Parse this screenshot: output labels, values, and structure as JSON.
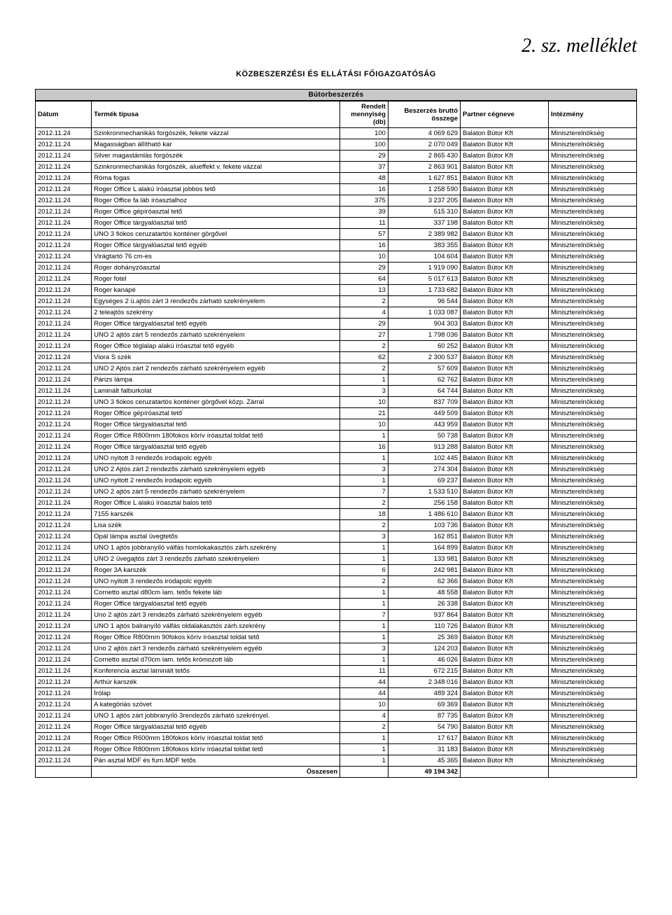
{
  "handwritten_note": "2. sz. melléklet",
  "org_title": "KÖZBESZERZÉSI ÉS ELLÁTÁSI FŐIGAZGATÓSÁG",
  "section_header": "Bútorbeszerzés",
  "columns": {
    "date": "Dátum",
    "product": "Termék típusa",
    "qty": "Rendelt mennyiség (db)",
    "amount": "Beszerzés bruttó összege",
    "partner": "Partner cégneve",
    "institution": "Intézmény"
  },
  "partner_default": "Balaton Bútor Kft",
  "institution_default": "Miniszterelnökség",
  "rows": [
    {
      "d": "2012.11.24",
      "p": "Szinkronmechanikás forgószék, fekete vázzal",
      "q": "100",
      "a": "4 069 629"
    },
    {
      "d": "2012.11.24",
      "p": "Magasságban állítható kar",
      "q": "100",
      "a": "2 070 049"
    },
    {
      "d": "2012.11.24",
      "p": "Silver magastámlás forgószék",
      "q": "29",
      "a": "2 865 430"
    },
    {
      "d": "2012.11.24",
      "p": "Szinkronmechanikás forgószék, alueffekt v. fekete vázzal",
      "q": "37",
      "a": "2 863 901"
    },
    {
      "d": "2012.11.24",
      "p": "Róma fogas",
      "q": "48",
      "a": "1 627 851"
    },
    {
      "d": "2012.11.24",
      "p": "Roger Office L alakú íróasztal jobbos tető",
      "q": "16",
      "a": "1 258 590"
    },
    {
      "d": "2012.11.24",
      "p": "Roger Office fa láb íróasztalhoz",
      "q": "375",
      "a": "3 237 205"
    },
    {
      "d": "2012.11.24",
      "p": "Roger Office gépíróasztal tető",
      "q": "39",
      "a": "515 310"
    },
    {
      "d": "2012.11.24",
      "p": "Roger Office tárgyalóasztal tető",
      "q": "11",
      "a": "337 198"
    },
    {
      "d": "2012.11.24",
      "p": "UNO 3 fiókos ceruzatartós konténer görgővel",
      "q": "57",
      "a": "2 389 982"
    },
    {
      "d": "2012.11.24",
      "p": "Roger Office tárgyalóasztal tető egyéb",
      "q": "16",
      "a": "383 355"
    },
    {
      "d": "2012.11.24",
      "p": "Virágtartó 76 cm-es",
      "q": "10",
      "a": "104 604"
    },
    {
      "d": "2012.11.24",
      "p": "Roger dohányzóasztal",
      "q": "29",
      "a": "1 919 090"
    },
    {
      "d": "2012.11.24",
      "p": "Roger fotel",
      "q": "64",
      "a": "5 017 613"
    },
    {
      "d": "2012.11.24",
      "p": "Roger kanapé",
      "q": "13",
      "a": "1 733 682"
    },
    {
      "d": "2012.11.24",
      "p": "Egységes 2 ü.ajtós zárt 3 rendezős zárható szekrényelem",
      "q": "2",
      "a": "96 544"
    },
    {
      "d": "2012.11.24",
      "p": "2 teleajtós szekrény",
      "q": "4",
      "a": "1 033 087"
    },
    {
      "d": "2012.11.24",
      "p": "Roger Office tárgyalóasztal tető egyéb",
      "q": "29",
      "a": "904 303"
    },
    {
      "d": "2012.11.24",
      "p": "UNO 2 ajtós zárt 5 rendezős zárható szekrényelem",
      "q": "27",
      "a": "1 798 036"
    },
    {
      "d": "2012.11.24",
      "p": "Roger Office téglalap alakú íróasztal tető egyéb",
      "q": "2",
      "a": "60 252"
    },
    {
      "d": "2012.11.24",
      "p": "Viora S szék",
      "q": "62",
      "a": "2 300 537"
    },
    {
      "d": "2012.11.24",
      "p": "UNO 2 Ajtós zárt 2 rendezős zárható szekrényelem egyéb",
      "q": "2",
      "a": "57 609"
    },
    {
      "d": "2012.11.24",
      "p": "Párizs lámpa",
      "q": "1",
      "a": "62 762"
    },
    {
      "d": "2012.11.24",
      "p": "Laminált falburkolat",
      "q": "3",
      "a": "64 744"
    },
    {
      "d": "2012.11.24",
      "p": "UNO 3 fiókos ceruzatartós konténer görgővel közp. Zárral",
      "q": "10",
      "a": "837 709"
    },
    {
      "d": "2012.11.24",
      "p": "Roger Office gépíróasztal tető",
      "q": "21",
      "a": "449 509"
    },
    {
      "d": "2012.11.24",
      "p": "Roger Office tárgyalóasztal tető",
      "q": "10",
      "a": "443 959"
    },
    {
      "d": "2012.11.24",
      "p": "Roger Office R800mm 180fokos körív íróasztal toldat tető",
      "q": "1",
      "a": "50 738"
    },
    {
      "d": "2012.11.24",
      "p": "Roger Office tárgyalóasztal tető egyéb",
      "q": "16",
      "a": "913 288"
    },
    {
      "d": "2012.11.24",
      "p": "UNO nyitott 3 rendezős irodapolc egyéb",
      "q": "1",
      "a": "102 445"
    },
    {
      "d": "2012.11.24",
      "p": "UNO 2 Ajtós zárt 2 rendezős zárható szekrényelem egyéb",
      "q": "3",
      "a": "274 304"
    },
    {
      "d": "2012.11.24",
      "p": "UNO nyitott 2 rendezős irodapolc egyéb",
      "q": "1",
      "a": "69 237"
    },
    {
      "d": "2012.11.24",
      "p": "UNO 2 ajtós zárt 5 rendezős zárható szekrényelem",
      "q": "7",
      "a": "1 533 510"
    },
    {
      "d": "2012.11.24",
      "p": "Roger Office L alakú íróasztal balos tető",
      "q": "2",
      "a": "256 158"
    },
    {
      "d": "2012.11.24",
      "p": "7155 karszék",
      "q": "18",
      "a": "1 486 610"
    },
    {
      "d": "2012.11.24",
      "p": "Lisa szék",
      "q": "2",
      "a": "103 736"
    },
    {
      "d": "2012.11.24",
      "p": "Opál lámpa asztal üvegtetős",
      "q": "3",
      "a": "162 851"
    },
    {
      "d": "2012.11.24",
      "p": "UNO 1 ajtós jobbranyíló válfás homlokakasztós zárh.szekrény",
      "q": "1",
      "a": "164 899"
    },
    {
      "d": "2012.11.24",
      "p": "UNO 2 üvegajtós zárt 3 rendezős zárható szekrényelem",
      "q": "1",
      "a": "133 981"
    },
    {
      "d": "2012.11.24",
      "p": "Roger 3A karszék",
      "q": "6",
      "a": "242 981"
    },
    {
      "d": "2012.11.24",
      "p": "UNO nyitott 3 rendezős irodapolc egyéb",
      "q": "2",
      "a": "62 366"
    },
    {
      "d": "2012.11.24",
      "p": "Cornetto asztal d80cm lam. tetős fekete láb",
      "q": "1",
      "a": "48 558"
    },
    {
      "d": "2012.11.24",
      "p": "Roger Office tárgyalóasztal tető egyéb",
      "q": "1",
      "a": "26 338"
    },
    {
      "d": "2012.11.24",
      "p": "Uno 2 ajtós zárt 3 rendezős zárható szekrényelem egyéb",
      "q": "7",
      "a": "937 864"
    },
    {
      "d": "2012.11.24",
      "p": "UNO 1 ajtós balranyíló válfás oldalakasztós zárh.szekrény",
      "q": "1",
      "a": "110 726"
    },
    {
      "d": "2012.11.24",
      "p": "Roger Office R800mm 90fokos körív íróasztal toldat tető",
      "q": "1",
      "a": "25 369"
    },
    {
      "d": "2012.11.24",
      "p": "Uno 2 ajtós zárt 3 rendezős zárható szekrényelem egyéb",
      "q": "3",
      "a": "124 203"
    },
    {
      "d": "2012.11.24",
      "p": "Cornetto asztal d70cm lam. tetős krómozott láb",
      "q": "1",
      "a": "46 026"
    },
    {
      "d": "2012.11.24",
      "p": "Konferencia asztal laminált tetős",
      "q": "11",
      "a": "672 215"
    },
    {
      "d": "2012.11.24",
      "p": "Arthúr karszék",
      "q": "44",
      "a": "2 348 016"
    },
    {
      "d": "2012.11.24",
      "p": "Írólap",
      "q": "44",
      "a": "489 324"
    },
    {
      "d": "2012.11.24",
      "p": "A kategóriás szövet",
      "q": "10",
      "a": "69 369"
    },
    {
      "d": "2012.11.24",
      "p": "UNO 1 ajtós zárt jobbranyíló 3rendezős zárható szekrényel.",
      "q": "4",
      "a": "87 735"
    },
    {
      "d": "2012.11.24",
      "p": "Roger Office tárgyalóasztal tető egyéb",
      "q": "2",
      "a": "54 790"
    },
    {
      "d": "2012.11.24",
      "p": "Roger Office R600mm 180fokos körív íróasztal toldat tető",
      "q": "1",
      "a": "17 617"
    },
    {
      "d": "2012.11.24",
      "p": "Roger Office R800mm 180fokos körív íróasztal toldat tető",
      "q": "1",
      "a": "31 183"
    },
    {
      "d": "2012.11.24",
      "p": "Pán asztal MDF és furn.MDF tetős",
      "q": "1",
      "a": "45 365"
    }
  ],
  "total_label": "Összesen",
  "total_amount": "49 194 342"
}
